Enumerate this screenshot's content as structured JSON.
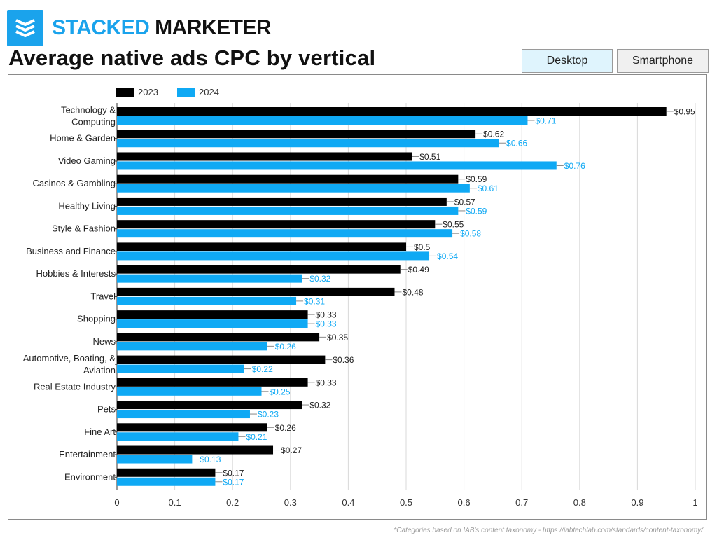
{
  "brand": {
    "part1": "STACKED",
    "part2": "MARKETER",
    "logo_icon": "stacked-layers-icon",
    "accent_color": "#1aa3ec"
  },
  "title": "Average native ads CPC by vertical",
  "tabs": [
    {
      "label": "Desktop",
      "selected": true
    },
    {
      "label": "Smartphone",
      "selected": false
    }
  ],
  "footnote": "*Categories based on IAB's content taxonomy - https://iabtechlab.com/standards/content-taxonomy/",
  "chart_data": {
    "type": "bar",
    "orientation": "horizontal",
    "title": "Average native ads CPC by vertical",
    "xlabel": "",
    "ylabel": "",
    "xlim": [
      0,
      1
    ],
    "xticks": [
      "0",
      "0.1",
      "0.2",
      "0.3",
      "0.4",
      "0.5",
      "0.6",
      "0.7",
      "0.8",
      "0.9",
      "1"
    ],
    "legend_position": "top-left",
    "grid": "vertical",
    "categories": [
      "Technology & Computing",
      "Home & Garden",
      "Video Gaming",
      "Casinos & Gambling",
      "Healthy Living",
      "Style & Fashion",
      "Business and Finance",
      "Hobbies & Interests",
      "Travel",
      "Shopping",
      "News",
      "Automotive, Boating, & Aviation",
      "Real Estate Industry",
      "Pets",
      "Fine Art",
      "Entertainment",
      "Environment"
    ],
    "category_lines": [
      [
        "Technology &",
        "Computing"
      ],
      [
        "Home & Garden"
      ],
      [
        "Video Gaming"
      ],
      [
        "Casinos & Gambling"
      ],
      [
        "Healthy Living"
      ],
      [
        "Style & Fashion"
      ],
      [
        "Business and Finance"
      ],
      [
        "Hobbies & Interests"
      ],
      [
        "Travel"
      ],
      [
        "Shopping"
      ],
      [
        "News"
      ],
      [
        "Automotive, Boating, &",
        "Aviation"
      ],
      [
        "Real Estate Industry"
      ],
      [
        "Pets"
      ],
      [
        "Fine Art"
      ],
      [
        "Entertainment"
      ],
      [
        "Environment"
      ]
    ],
    "series": [
      {
        "name": "2023",
        "color": "#000000",
        "label_color": "#222222",
        "values": [
          0.95,
          0.62,
          0.51,
          0.59,
          0.57,
          0.55,
          0.5,
          0.49,
          0.48,
          0.33,
          0.35,
          0.36,
          0.33,
          0.32,
          0.26,
          0.27,
          0.17
        ],
        "labels": [
          "$0.95",
          "$0.62",
          "$0.51",
          "$0.59",
          "$0.57",
          "$0.55",
          "$0.5",
          "$0.49",
          "$0.48",
          "$0.33",
          "$0.35",
          "$0.36",
          "$0.33",
          "$0.32",
          "$0.26",
          "$0.27",
          "$0.17"
        ]
      },
      {
        "name": "2024",
        "color": "#0fa9f4",
        "label_color": "#0fa9f4",
        "values": [
          0.71,
          0.66,
          0.76,
          0.61,
          0.59,
          0.58,
          0.54,
          0.32,
          0.31,
          0.33,
          0.26,
          0.22,
          0.25,
          0.23,
          0.21,
          0.13,
          0.17
        ],
        "labels": [
          "$0.71",
          "$0.66",
          "$0.76",
          "$0.61",
          "$0.59",
          "$0.58",
          "$0.54",
          "$0.32",
          "$0.31",
          "$0.33",
          "$0.26",
          "$0.22",
          "$0.25",
          "$0.23",
          "$0.21",
          "$0.13",
          "$0.17"
        ]
      }
    ]
  }
}
